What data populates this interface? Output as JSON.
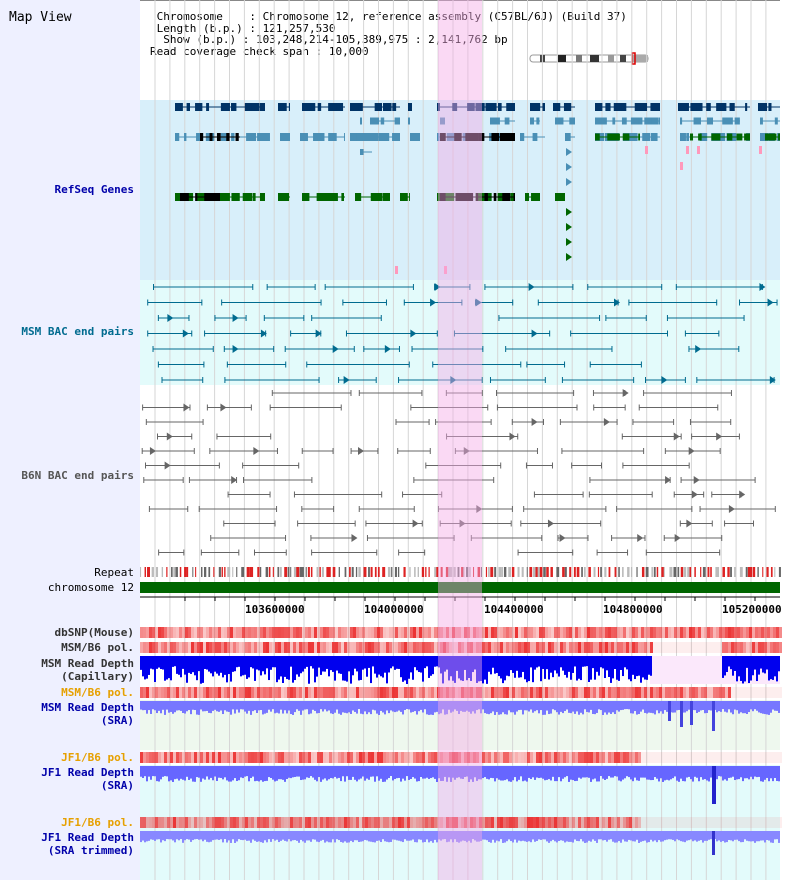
{
  "view_title": "Map View",
  "info": {
    "chromosome_label": "Chromosome",
    "chromosome_value": "Chromosome 12, reference assembly (C57BL/6J) (Build 37)",
    "length_label": "Length (b.p.)",
    "length_value": "121,257,530",
    "show_label": "Show (b.p.)",
    "show_value": "103,248,214-105,389,975 : 2,141,762 bp",
    "coverage_label": "Read coverage check span",
    "coverage_value": "10,000"
  },
  "tracks": {
    "refseq": "RefSeq Genes",
    "msm_bac": "MSM BAC end pairs",
    "b6n_bac": "B6N BAC end pairs",
    "repeat": "Repeat",
    "chromosome": "chromosome 12",
    "dbsnp": "dbSNP(Mouse)",
    "msm_pol_1": "MSM/B6 pol.",
    "msm_depth_cap_1": "MSM Read Depth",
    "msm_depth_cap_2": "(Capillary)",
    "msm_pol_2": "MSM/B6 pol.",
    "msm_depth_sra_1": "MSM Read Depth",
    "msm_depth_sra_2": "(SRA)",
    "jf1_pol_1": "JF1/B6 pol.",
    "jf1_depth_sra_1": "JF1 Read Depth",
    "jf1_depth_sra_2": "(SRA)",
    "jf1_pol_2": "JF1/B6 pol.",
    "jf1_depth_trim_1": "JF1 Read Depth",
    "jf1_depth_trim_2": "(SRA trimmed)"
  },
  "axis": {
    "ticks": [
      "103600000",
      "104000000",
      "104400000",
      "104800000",
      "105200000"
    ]
  },
  "colors": {
    "refseq_bg": "#d8effa",
    "bac_bg": "#e3fbfb",
    "highlight": "#f5aae6",
    "gene_dark": "#003366",
    "gene_mid": "#4a8fb5",
    "gene_green": "#006600",
    "msm_line": "#006b8f",
    "b6n_line": "#666666",
    "label_blue": "#0000aa",
    "label_teal": "#006b8f",
    "label_orange": "#e6a000"
  }
}
